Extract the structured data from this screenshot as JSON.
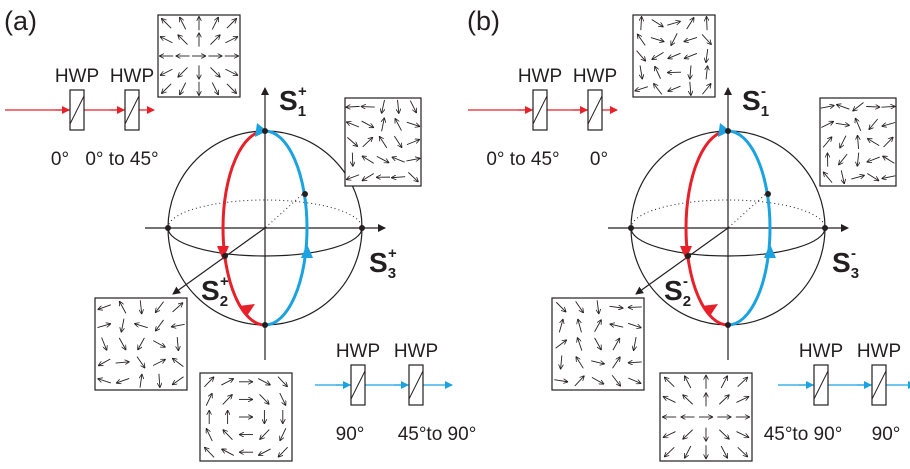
{
  "panels": [
    {
      "label": "(a)",
      "top_optics": {
        "plates": [
          "HWP",
          "HWP"
        ],
        "angles": [
          "0°",
          "0° to 45°"
        ]
      },
      "s1": {
        "symbol": "S",
        "index": "1",
        "sign": "+"
      },
      "s2": {
        "symbol": "S",
        "index": "2",
        "sign": "+"
      },
      "s3": {
        "symbol": "S",
        "index": "3",
        "sign": "+"
      },
      "bottom_optics": {
        "plates": [
          "HWP",
          "HWP"
        ],
        "angles": [
          "90°",
          "45°to 90°"
        ]
      }
    },
    {
      "label": "(b)",
      "top_optics": {
        "plates": [
          "HWP",
          "HWP"
        ],
        "angles": [
          "0° to 45°",
          "0°"
        ]
      },
      "s1": {
        "symbol": "S",
        "index": "1",
        "sign": "-"
      },
      "s2": {
        "symbol": "S",
        "index": "2",
        "sign": "-"
      },
      "s3": {
        "symbol": "S",
        "index": "3",
        "sign": "-"
      },
      "bottom_optics": {
        "plates": [
          "HWP",
          "HWP"
        ],
        "angles": [
          "45°to 90°",
          "90°"
        ]
      }
    }
  ]
}
